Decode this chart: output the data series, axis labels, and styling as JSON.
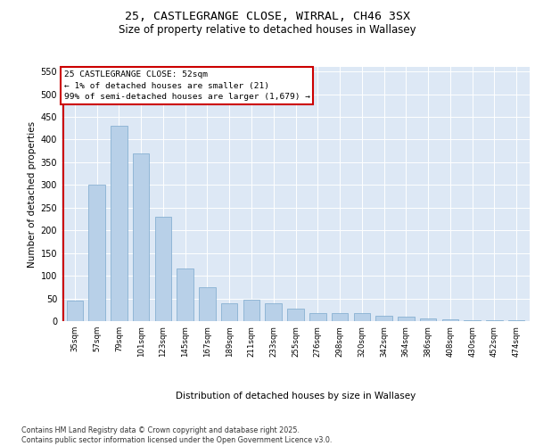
{
  "title1": "25, CASTLEGRANGE CLOSE, WIRRAL, CH46 3SX",
  "title2": "Size of property relative to detached houses in Wallasey",
  "xlabel": "Distribution of detached houses by size in Wallasey",
  "ylabel": "Number of detached properties",
  "categories": [
    "35sqm",
    "57sqm",
    "79sqm",
    "101sqm",
    "123sqm",
    "145sqm",
    "167sqm",
    "189sqm",
    "211sqm",
    "233sqm",
    "255sqm",
    "276sqm",
    "298sqm",
    "320sqm",
    "342sqm",
    "364sqm",
    "386sqm",
    "408sqm",
    "430sqm",
    "452sqm",
    "474sqm"
  ],
  "values": [
    46,
    300,
    430,
    370,
    230,
    115,
    75,
    40,
    48,
    40,
    28,
    18,
    18,
    18,
    12,
    10,
    5,
    4,
    2,
    1,
    1
  ],
  "bar_color": "#b8d0e8",
  "bar_edge_color": "#7aa8cc",
  "vline_color": "#cc0000",
  "annotation_text": "25 CASTLEGRANGE CLOSE: 52sqm\n← 1% of detached houses are smaller (21)\n99% of semi-detached houses are larger (1,679) →",
  "annotation_box_edgecolor": "#cc0000",
  "ylim_max": 560,
  "yticks": [
    0,
    50,
    100,
    150,
    200,
    250,
    300,
    350,
    400,
    450,
    500,
    550
  ],
  "plot_bg_color": "#dde8f5",
  "footer_text": "Contains HM Land Registry data © Crown copyright and database right 2025.\nContains public sector information licensed under the Open Government Licence v3.0."
}
